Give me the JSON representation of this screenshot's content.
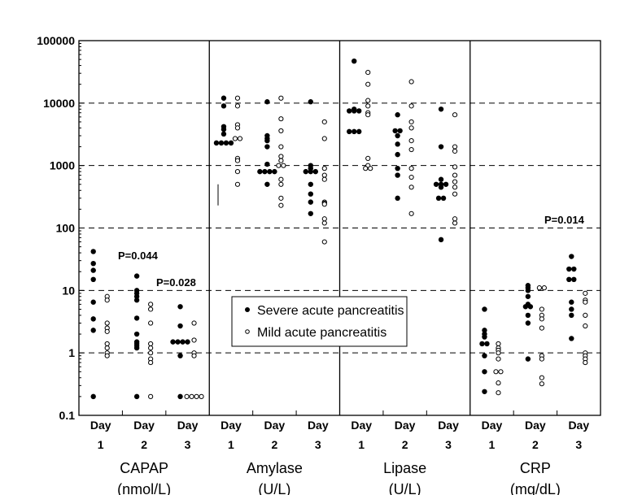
{
  "chart_data": {
    "type": "scatter",
    "yscale": "log",
    "ylim": [
      0.1,
      100000
    ],
    "yticks": [
      "0.1",
      "1",
      "10",
      "100",
      "1000",
      "10000",
      "100000"
    ],
    "grid": "dashed horizontal at 1, 10, 100, 1000, 10000",
    "legend": {
      "placement": "center",
      "entries": [
        "Severe acute pancreatitis",
        "Mild acute pancreatitis"
      ]
    },
    "day_labels": [
      [
        "Day",
        "1"
      ],
      [
        "Day",
        "2"
      ],
      [
        "Day",
        "3"
      ]
    ],
    "annotations": [
      {
        "text": "P=0.044",
        "panel": "CAPAP"
      },
      {
        "text": "P=0.028",
        "panel": "CAPAP"
      },
      {
        "text": "P=0.014",
        "panel": "CRP"
      }
    ],
    "panels": [
      {
        "name": "CAPAP",
        "unit": "(nmol/L)",
        "days": [
          {
            "severe": [
              42,
              27,
              21,
              15,
              6.5,
              3.5,
              2.3,
              0.2
            ],
            "mild": [
              8,
              7,
              3,
              2.5,
              2.2,
              1.4,
              1.2,
              1.0,
              0.9
            ]
          },
          {
            "severe": [
              17,
              10,
              9,
              8,
              7,
              3.6,
              2,
              1.5,
              1.4,
              1.3,
              1.2,
              0.2
            ],
            "mild": [
              6,
              5,
              3,
              1.4,
              1.2,
              1.0,
              0.8,
              0.7,
              0.2
            ]
          },
          {
            "severe": [
              5.5,
              2.7,
              1.5,
              1.5,
              1.5,
              1.5,
              0.9,
              0.2
            ],
            "mild": [
              3,
              1.6,
              1.0,
              0.9,
              0.2,
              0.2,
              0.2,
              0.2
            ]
          }
        ]
      },
      {
        "name": "Amylase",
        "unit": "(U/L)",
        "days": [
          {
            "severe": [
              12000,
              9000,
              4200,
              3800,
              3200,
              2300,
              2300,
              2300,
              2300
            ],
            "mild": [
              12000,
              9000,
              4500,
              4000,
              2700,
              2700,
              1300,
              1200,
              800,
              500
            ]
          },
          {
            "severe": [
              10500,
              3000,
              2700,
              2500,
              2000,
              1050,
              800,
              800,
              800,
              800,
              500
            ],
            "mild": [
              12000,
              5600,
              3600,
              2000,
              1400,
              1200,
              1000,
              1000,
              600,
              500,
              300,
              230
            ]
          },
          {
            "severe": [
              10500,
              1000,
              900,
              800,
              800,
              800,
              500,
              350,
              260,
              170
            ],
            "mild": [
              5000,
              2700,
              900,
              700,
              600,
              260,
              250,
              240,
              140,
              120,
              60
            ]
          }
        ]
      },
      {
        "name": "Lipase",
        "unit": "(U/L)",
        "days": [
          {
            "severe": [
              47000,
              8000,
              7500,
              7500,
              7500,
              3500,
              3500,
              3500
            ],
            "mild": [
              31000,
              20000,
              11000,
              9000,
              7000,
              6500,
              1300,
              1000,
              900,
              900
            ]
          },
          {
            "severe": [
              6500,
              3600,
              3600,
              3000,
              2200,
              1500,
              900,
              700,
              300
            ],
            "mild": [
              22000,
              9000,
              5000,
              4000,
              2500,
              1800,
              900,
              650,
              450,
              170
            ]
          },
          {
            "severe": [
              8000,
              2000,
              600,
              500,
              500,
              500,
              450,
              300,
              300,
              65
            ],
            "mild": [
              6500,
              2000,
              1700,
              950,
              700,
              550,
              450,
              350,
              140,
              120
            ]
          }
        ]
      },
      {
        "name": "CRP",
        "unit": "(mg/dL)",
        "days": [
          {
            "severe": [
              5,
              2.3,
              2.0,
              1.8,
              1.4,
              1.4,
              0.9,
              0.5,
              0.24
            ],
            "mild": [
              1.4,
              1.2,
              1.1,
              1.0,
              0.8,
              0.5,
              0.5,
              0.33,
              0.23
            ]
          },
          {
            "severe": [
              12,
              11,
              10,
              8,
              6,
              5.5,
              5.5,
              4,
              3,
              0.8
            ],
            "mild": [
              11,
              11,
              5,
              4,
              3.5,
              2.5,
              0.9,
              0.8,
              0.4,
              0.32
            ]
          },
          {
            "severe": [
              35,
              22,
              22,
              15,
              15,
              6.5,
              5,
              4,
              1.7
            ],
            "mild": [
              9,
              7,
              6.5,
              4,
              2.7,
              1.0,
              0.9,
              0.8,
              0.7
            ]
          }
        ]
      }
    ]
  }
}
